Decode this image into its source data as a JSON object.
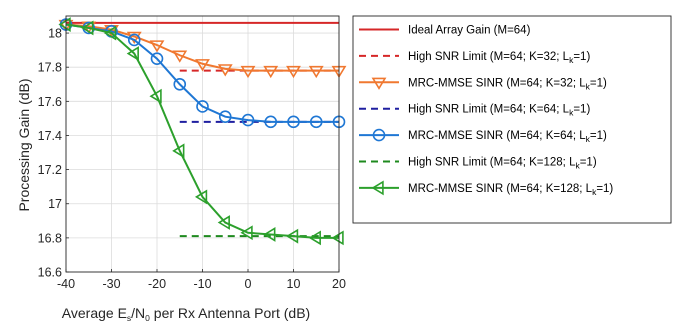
{
  "chart_data": {
    "type": "line",
    "xlabel": {
      "prefix": "Average E",
      "sub1": "s",
      "mid": "/N",
      "sub2": "0",
      "suffix": " per Rx Antenna Port (dB)"
    },
    "ylabel": "Processing Gain (dB)",
    "xlim": [
      -40,
      20
    ],
    "ylim": [
      16.6,
      18.1
    ],
    "xticks": [
      -40,
      -30,
      -20,
      -10,
      0,
      10,
      20
    ],
    "xtick_labels": [
      "-40",
      "-30",
      "-20",
      "-10",
      "0",
      "10",
      "20"
    ],
    "yticks": [
      16.6,
      16.8,
      17,
      17.2,
      17.4,
      17.6,
      17.8,
      18
    ],
    "ytick_labels": [
      "16.6",
      "16.8",
      "17",
      "17.2",
      "17.4",
      "17.6",
      "17.8",
      "18"
    ],
    "grid": true,
    "legend_position": "outside-right",
    "series": [
      {
        "key": "ideal",
        "label": {
          "main": "Ideal Array Gain (M=64)"
        },
        "color": "#d62728",
        "style": "solid",
        "marker": "none",
        "x": [
          -40,
          20
        ],
        "y": [
          18.06,
          18.06
        ]
      },
      {
        "key": "hsnr32",
        "label": {
          "main": "High SNR Limit (M=64; K=32; L",
          "sub": "k",
          "tail": "=1)"
        },
        "color": "#d62728",
        "style": "dashed",
        "marker": "none",
        "x": [
          -15,
          20
        ],
        "y": [
          17.78,
          17.78
        ]
      },
      {
        "key": "mrc32",
        "label": {
          "main": "MRC-MMSE SINR (M=64; K=32; L",
          "sub": "k",
          "tail": "=1)"
        },
        "color": "#f07830",
        "style": "solid",
        "marker": "triangle-down",
        "x": [
          -40,
          -35,
          -30,
          -25,
          -20,
          -15,
          -10,
          -5,
          0,
          5,
          10,
          15,
          20
        ],
        "y": [
          18.05,
          18.04,
          18.02,
          17.98,
          17.93,
          17.87,
          17.82,
          17.79,
          17.78,
          17.78,
          17.78,
          17.78,
          17.78
        ]
      },
      {
        "key": "hsnr64",
        "label": {
          "main": "High SNR Limit (M=64; K=64; L",
          "sub": "k",
          "tail": "=1)"
        },
        "color": "#1f1fa0",
        "style": "dashed",
        "marker": "none",
        "x": [
          -15,
          20
        ],
        "y": [
          17.48,
          17.48
        ]
      },
      {
        "key": "mrc64",
        "label": {
          "main": "MRC-MMSE SINR (M=64; K=64; L",
          "sub": "k",
          "tail": "=1)"
        },
        "color": "#1f77d4",
        "style": "solid",
        "marker": "circle",
        "x": [
          -40,
          -35,
          -30,
          -25,
          -20,
          -15,
          -10,
          -5,
          0,
          5,
          10,
          15,
          20
        ],
        "y": [
          18.05,
          18.03,
          18.01,
          17.96,
          17.85,
          17.7,
          17.57,
          17.51,
          17.49,
          17.48,
          17.48,
          17.48,
          17.48
        ]
      },
      {
        "key": "hsnr128",
        "label": {
          "main": "High SNR Limit (M=64; K=128; L",
          "sub": "k",
          "tail": "=1)"
        },
        "color": "#1e8a1e",
        "style": "dashed",
        "marker": "none",
        "x": [
          -15,
          20
        ],
        "y": [
          16.81,
          16.81
        ]
      },
      {
        "key": "mrc128",
        "label": {
          "main": "MRC-MMSE SINR (M=64; K=128; L",
          "sub": "k",
          "tail": "=1)"
        },
        "color": "#2ca02c",
        "style": "solid",
        "marker": "triangle-left",
        "x": [
          -40,
          -35,
          -30,
          -25,
          -20,
          -15,
          -10,
          -5,
          0,
          5,
          10,
          15,
          20
        ],
        "y": [
          18.05,
          18.03,
          18.0,
          17.88,
          17.63,
          17.31,
          17.04,
          16.89,
          16.83,
          16.82,
          16.81,
          16.8,
          16.8
        ]
      }
    ]
  }
}
